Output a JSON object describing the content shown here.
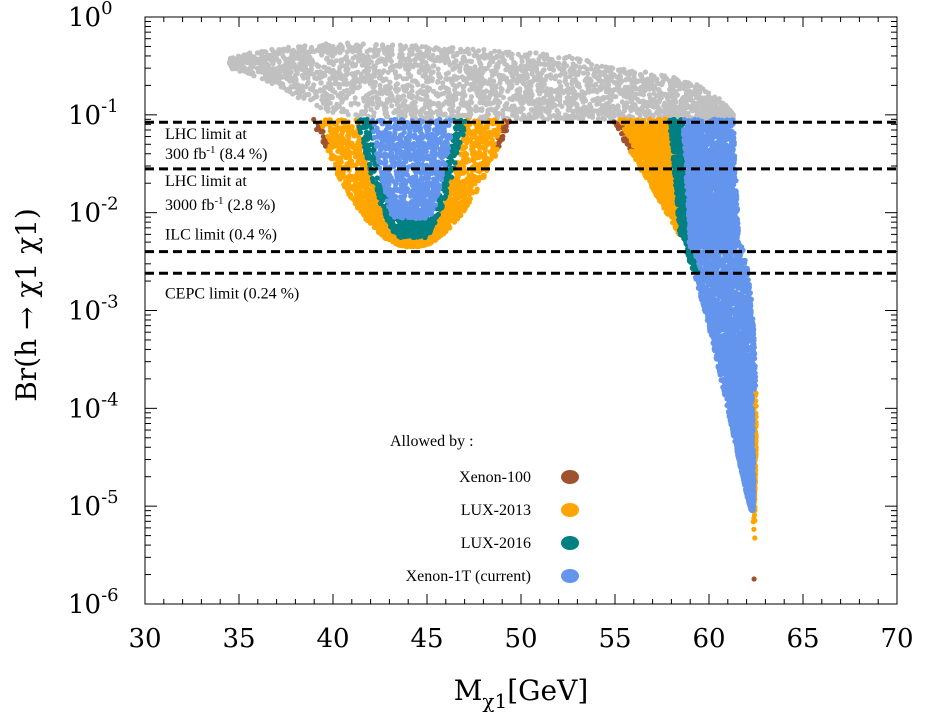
{
  "chart_data": {
    "type": "scatter",
    "xlim": [
      30,
      70
    ],
    "ylim_exponent": [
      -6,
      0
    ],
    "yscale": "log",
    "x_ticks": [
      "30",
      "35",
      "40",
      "45",
      "50",
      "55",
      "60",
      "65",
      "70"
    ],
    "y_ticks": [
      {
        "base": "10",
        "exp": "0",
        "value": 1
      },
      {
        "base": "10",
        "exp": "-1",
        "value": 0.1
      },
      {
        "base": "10",
        "exp": "-2",
        "value": 0.01
      },
      {
        "base": "10",
        "exp": "-3",
        "value": 0.001
      },
      {
        "base": "10",
        "exp": "-4",
        "value": 0.0001
      },
      {
        "base": "10",
        "exp": "-5",
        "value": 1e-05
      },
      {
        "base": "10",
        "exp": "-6",
        "value": 1e-06
      }
    ],
    "xlabel": {
      "main": "M",
      "sub": "χ1",
      "unit": "[GeV]"
    },
    "ylabel": "Br(h → χ1 χ1)",
    "limits": [
      {
        "value": 0.084,
        "line1": "LHC limit at",
        "line2_a": "300 fb",
        "line2_sup": "-1",
        "line2_b": " (8.4 %)"
      },
      {
        "value": 0.028,
        "line1": "LHC limit at",
        "line2_a": "3000 fb",
        "line2_sup": "-1",
        "line2_b": " (2.8 %)"
      },
      {
        "value": 0.004,
        "line1": "ILC limit (0.4 %)"
      },
      {
        "value": 0.0024,
        "line1": "CEPC limit (0.24 %)"
      }
    ],
    "legend_title": "Allowed by :",
    "series": [
      {
        "name": "Xenon-100",
        "color": "#a0522d"
      },
      {
        "name": "LUX-2013",
        "color": "#ffa500"
      },
      {
        "name": "LUX-2016",
        "color": "#008080"
      },
      {
        "name": "Xenon-1T (current)",
        "color": "#6495ed"
      }
    ],
    "excluded_color": "#c0c0c0",
    "regions": {
      "excluded_band": {
        "x": [
          34.5,
          61.3
        ],
        "y_range": [
          0.09,
          0.55
        ]
      },
      "left_funnel": {
        "x": [
          39,
          49
        ],
        "min_x": 44.5,
        "min_y": 0.0045
      },
      "right_funnel": {
        "x": [
          54.5,
          62.5
        ],
        "tail_x": 62.4,
        "tail_min_y": 1.8e-06
      }
    }
  }
}
